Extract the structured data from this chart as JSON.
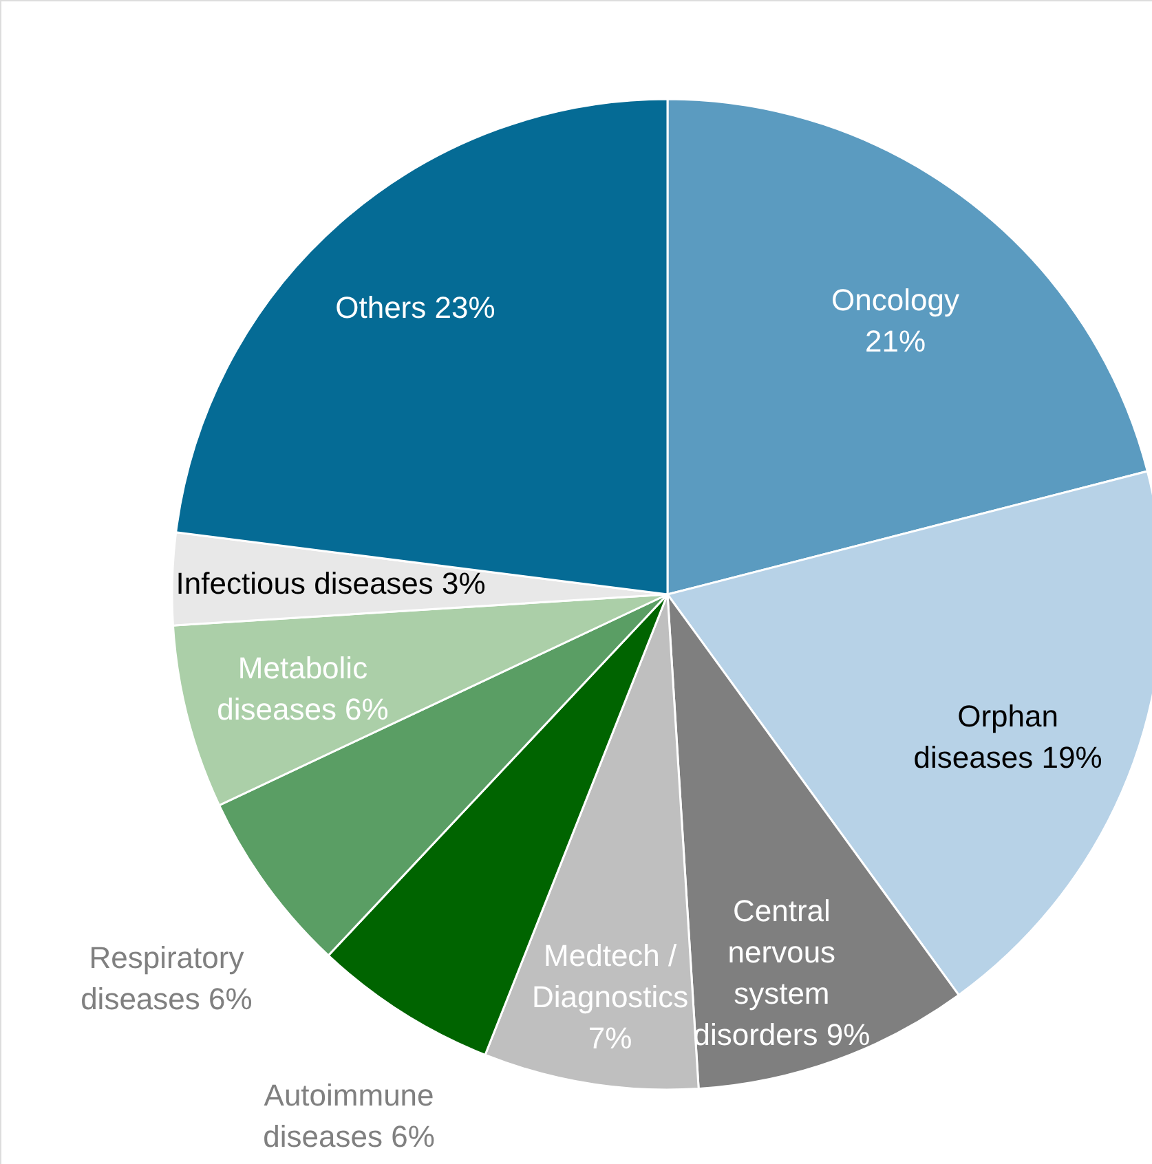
{
  "chart_data": {
    "type": "pie",
    "categories": [
      "Oncology",
      "Orphan diseases",
      "Central nervous system disorders",
      "Medtech / Diagnostics",
      "Autoimmune diseases",
      "Respiratory diseases",
      "Metabolic diseases",
      "Infectious diseases",
      "Others"
    ],
    "values": [
      21,
      19,
      9,
      7,
      6,
      6,
      6,
      3,
      23
    ],
    "value_labels": [
      "21%",
      "19%",
      "9%",
      "7%",
      "6%",
      "6%",
      "6%",
      "3%",
      "23%"
    ],
    "colors": [
      "#5b9bc0",
      "#b7d2e7",
      "#7f7f7f",
      "#bfbfbf",
      "#006400",
      "#5a9e64",
      "#abcfa8",
      "#e8e8e8",
      "#056b95"
    ]
  }
}
